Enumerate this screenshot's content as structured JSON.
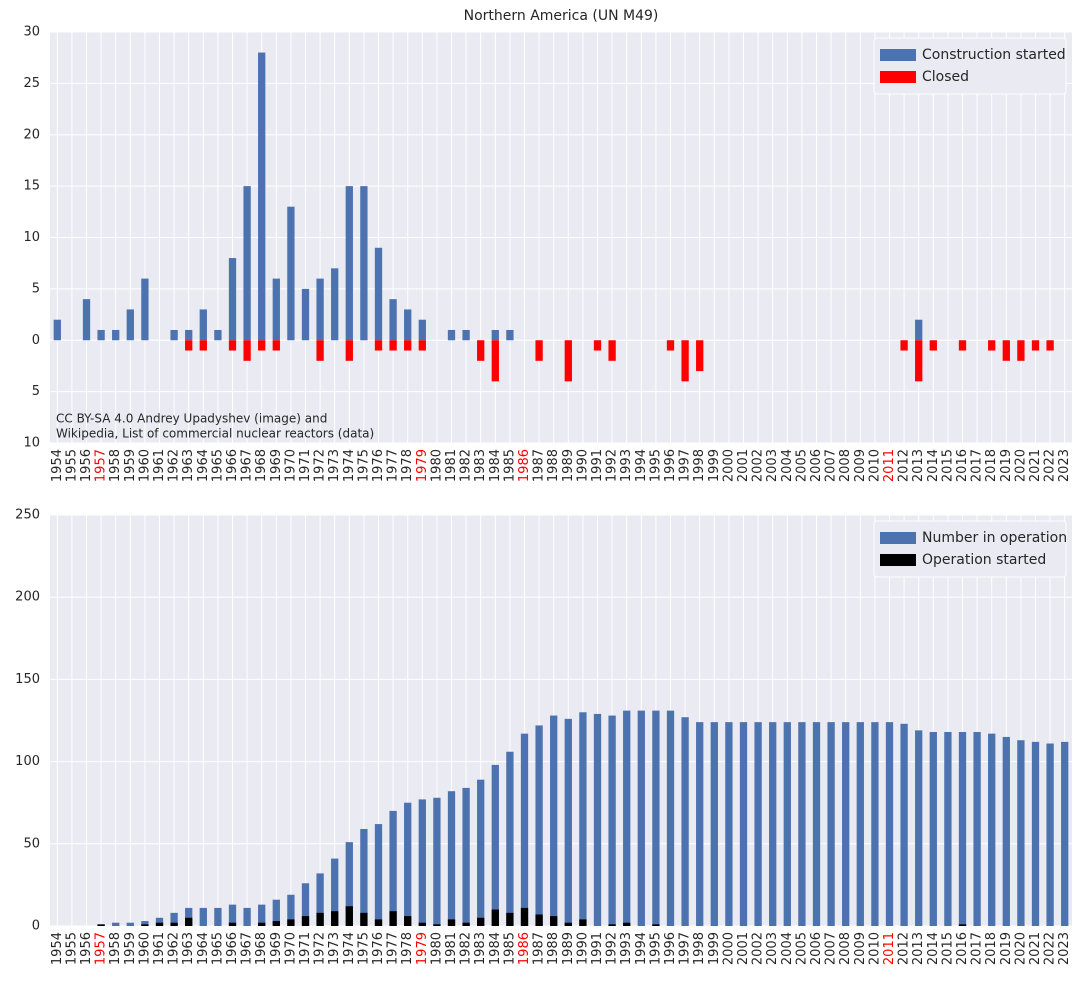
{
  "chart_data": [
    {
      "type": "bar",
      "title": "Northern America (UN M49)",
      "categories": [
        "1954",
        "1955",
        "1956",
        "1957",
        "1958",
        "1959",
        "1960",
        "1961",
        "1962",
        "1963",
        "1964",
        "1965",
        "1966",
        "1967",
        "1968",
        "1969",
        "1970",
        "1971",
        "1972",
        "1973",
        "1974",
        "1975",
        "1976",
        "1977",
        "1978",
        "1979",
        "1980",
        "1981",
        "1982",
        "1983",
        "1984",
        "1985",
        "1986",
        "1987",
        "1988",
        "1989",
        "1990",
        "1991",
        "1992",
        "1993",
        "1994",
        "1995",
        "1996",
        "1997",
        "1998",
        "1999",
        "2000",
        "2001",
        "2002",
        "2003",
        "2004",
        "2005",
        "2006",
        "2007",
        "2008",
        "2009",
        "2010",
        "2011",
        "2012",
        "2013",
        "2014",
        "2015",
        "2016",
        "2017",
        "2018",
        "2019",
        "2020",
        "2021",
        "2022",
        "2023"
      ],
      "highlight": {
        "color": "red",
        "categories": [
          "1957",
          "1979",
          "1986",
          "2011"
        ]
      },
      "series": [
        {
          "name": "Construction started",
          "color": "#4c72b0",
          "values": [
            2,
            0,
            4,
            1,
            1,
            3,
            6,
            0,
            1,
            1,
            3,
            1,
            8,
            15,
            28,
            6,
            13,
            5,
            6,
            7,
            15,
            15,
            9,
            4,
            3,
            2,
            0,
            1,
            1,
            0,
            1,
            1,
            0,
            0,
            0,
            0,
            0,
            0,
            0,
            0,
            0,
            0,
            0,
            0,
            0,
            0,
            0,
            0,
            0,
            0,
            0,
            0,
            0,
            0,
            0,
            0,
            0,
            0,
            0,
            2,
            0,
            0,
            0,
            0,
            0,
            0,
            0,
            0,
            0,
            0
          ]
        },
        {
          "name": "Closed",
          "color": "#ff0000",
          "values": [
            0,
            0,
            0,
            0,
            0,
            0,
            0,
            0,
            0,
            -1,
            -1,
            0,
            -1,
            -2,
            -1,
            -1,
            0,
            0,
            -2,
            0,
            -2,
            0,
            -1,
            -1,
            -1,
            -1,
            0,
            0,
            0,
            -2,
            -4,
            0,
            0,
            -2,
            0,
            -4,
            0,
            -1,
            -2,
            0,
            0,
            0,
            -1,
            -4,
            -3,
            0,
            0,
            0,
            0,
            0,
            0,
            0,
            0,
            0,
            0,
            0,
            0,
            0,
            -1,
            -4,
            -1,
            0,
            -1,
            0,
            -1,
            -2,
            -2,
            -1,
            -1,
            0
          ]
        }
      ],
      "ylim": [
        -10,
        30
      ],
      "yticks": [
        {
          "value": -10,
          "label": "10"
        },
        {
          "value": -5,
          "label": "5"
        },
        0,
        5,
        10,
        15,
        20,
        25,
        30
      ],
      "grid": true,
      "legend": "upper right",
      "annotation": [
        "CC BY-SA 4.0 Andrey Upadyshev (image) and",
        "Wikipedia, List of commercial nuclear reactors (data)"
      ]
    },
    {
      "type": "bar",
      "categories": [
        "1954",
        "1955",
        "1956",
        "1957",
        "1958",
        "1959",
        "1960",
        "1961",
        "1962",
        "1963",
        "1964",
        "1965",
        "1966",
        "1967",
        "1968",
        "1969",
        "1970",
        "1971",
        "1972",
        "1973",
        "1974",
        "1975",
        "1976",
        "1977",
        "1978",
        "1979",
        "1980",
        "1981",
        "1982",
        "1983",
        "1984",
        "1985",
        "1986",
        "1987",
        "1988",
        "1989",
        "1990",
        "1991",
        "1992",
        "1993",
        "1994",
        "1995",
        "1996",
        "1997",
        "1998",
        "1999",
        "2000",
        "2001",
        "2002",
        "2003",
        "2004",
        "2005",
        "2006",
        "2007",
        "2008",
        "2009",
        "2010",
        "2011",
        "2012",
        "2013",
        "2014",
        "2015",
        "2016",
        "2017",
        "2018",
        "2019",
        "2020",
        "2021",
        "2022",
        "2023"
      ],
      "highlight": {
        "color": "red",
        "categories": [
          "1957",
          "1979",
          "1986",
          "2011"
        ]
      },
      "series": [
        {
          "name": "Number in operation",
          "color": "#4c72b0",
          "values": [
            0,
            0,
            0,
            1,
            2,
            2,
            3,
            5,
            8,
            11,
            11,
            11,
            13,
            11,
            13,
            16,
            19,
            26,
            32,
            41,
            51,
            59,
            62,
            70,
            75,
            77,
            78,
            82,
            84,
            89,
            98,
            106,
            117,
            122,
            128,
            126,
            130,
            129,
            128,
            131,
            131,
            131,
            131,
            127,
            124,
            124,
            124,
            124,
            124,
            124,
            124,
            124,
            124,
            124,
            124,
            124,
            124,
            124,
            123,
            119,
            118,
            118,
            118,
            118,
            117,
            115,
            113,
            112,
            111,
            112
          ]
        },
        {
          "name": "Operation started",
          "color": "#000000",
          "values": [
            0,
            0,
            0,
            1,
            0,
            0,
            1,
            2,
            2,
            5,
            0,
            0,
            2,
            0,
            2,
            3,
            4,
            6,
            8,
            9,
            12,
            8,
            4,
            9,
            6,
            2,
            1,
            4,
            2,
            5,
            10,
            8,
            11,
            7,
            6,
            2,
            4,
            0,
            1,
            2,
            0,
            1,
            0,
            0,
            0,
            0,
            0,
            0,
            0,
            0,
            0,
            0,
            0,
            0,
            0,
            0,
            0,
            0,
            0,
            0,
            0,
            0,
            1,
            0,
            0,
            0,
            0,
            0,
            0,
            0
          ]
        }
      ],
      "ylim": [
        0,
        250
      ],
      "yticks": [
        0,
        50,
        100,
        150,
        200,
        250
      ],
      "grid": true,
      "legend": "upper right"
    }
  ]
}
